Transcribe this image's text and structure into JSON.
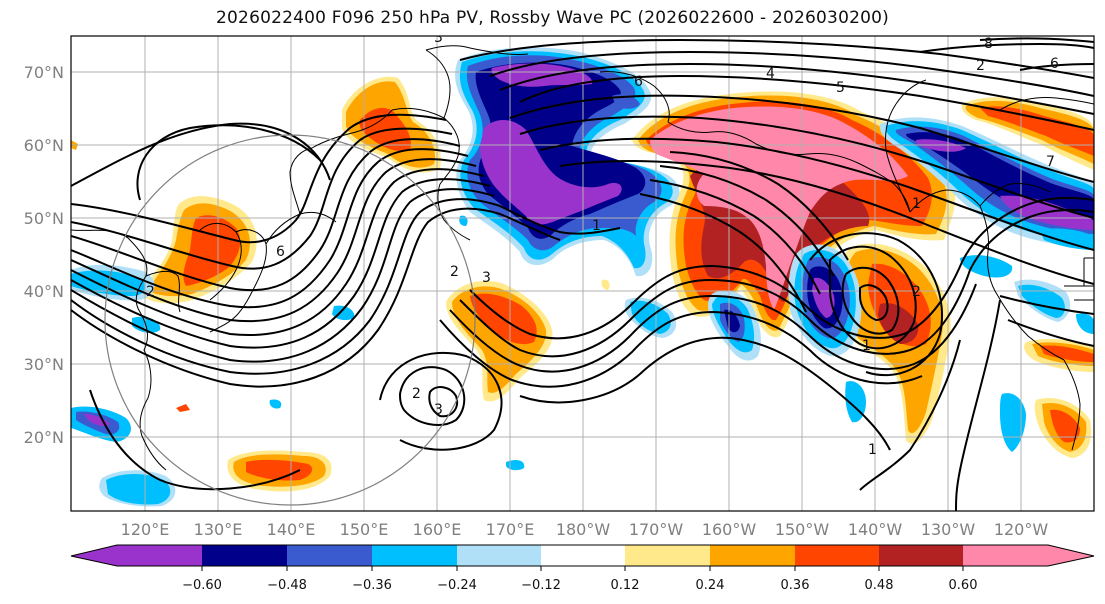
{
  "title": "2026022400 F096 250 hPa PV, Rossby Wave PC (2026022600 - 2026030200)",
  "lat_labels": [
    "70°N",
    "60°N",
    "50°N",
    "40°N",
    "30°N",
    "20°N"
  ],
  "lon_labels": [
    "120°E",
    "130°E",
    "140°E",
    "150°E",
    "160°E",
    "170°E",
    "180°W",
    "170°W",
    "160°W",
    "150°W",
    "140°W",
    "130°W",
    "120°W"
  ],
  "colorbar": {
    "ticks": [
      "−0.60",
      "−0.48",
      "−0.36",
      "−0.24",
      "−0.12",
      "0.12",
      "0.24",
      "0.36",
      "0.48",
      "0.60"
    ],
    "colors": [
      "#9933cc",
      "#00008b",
      "#3a5bd0",
      "#00bfff",
      "#b0e0f8",
      "#ffffff",
      "#ffe98a",
      "#ffa500",
      "#ff4500",
      "#b22222",
      "#ff88aa"
    ]
  },
  "contour_labels": [
    "3",
    "4",
    "5",
    "6",
    "8",
    "2",
    "3",
    "1",
    "2",
    "6",
    "6",
    "2",
    "3",
    "1",
    "1",
    "2",
    "1",
    "2",
    "7"
  ]
}
